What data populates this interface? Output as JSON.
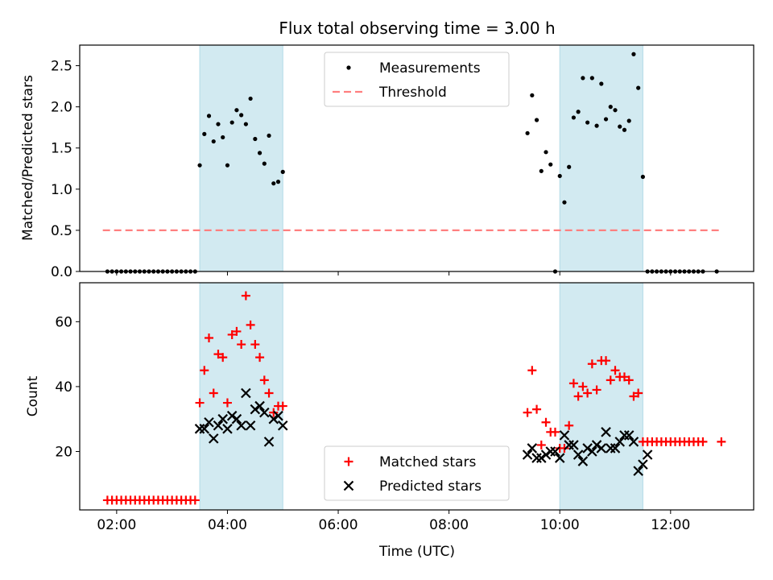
{
  "chart_data": {
    "type": "scatter",
    "title": "Flux total observing time = 3.00 h",
    "xlabel": "Time (UTC)",
    "x_unit": "hours UTC",
    "xlim": [
      "01:20",
      "13:30"
    ],
    "xticks": [
      "02:00",
      "04:00",
      "06:00",
      "08:00",
      "10:00",
      "12:00"
    ],
    "shaded_intervals": [
      [
        "03:30",
        "05:00"
      ],
      [
        "10:00",
        "11:30"
      ]
    ],
    "shade_color": "#add8e6",
    "panels": [
      {
        "name": "top",
        "ylabel": "Matched/Predicted stars",
        "ylim": [
          0,
          2.75
        ],
        "yticks": [
          "0.0",
          "0.5",
          "1.0",
          "1.5",
          "2.0",
          "2.5"
        ],
        "legend_position": "upper center",
        "series": [
          {
            "name": "Measurements",
            "marker": "dot",
            "color": "#000000",
            "points": [
              [
                "01:50",
                0
              ],
              [
                "01:55",
                0
              ],
              [
                "02:00",
                0
              ],
              [
                "02:05",
                0
              ],
              [
                "02:10",
                0
              ],
              [
                "02:15",
                0
              ],
              [
                "02:20",
                0
              ],
              [
                "02:25",
                0
              ],
              [
                "02:30",
                0
              ],
              [
                "02:35",
                0
              ],
              [
                "02:40",
                0
              ],
              [
                "02:45",
                0
              ],
              [
                "02:50",
                0
              ],
              [
                "02:55",
                0
              ],
              [
                "03:00",
                0
              ],
              [
                "03:05",
                0
              ],
              [
                "03:10",
                0
              ],
              [
                "03:15",
                0
              ],
              [
                "03:20",
                0
              ],
              [
                "03:25",
                0
              ],
              [
                "03:30",
                1.29
              ],
              [
                "03:35",
                1.67
              ],
              [
                "03:40",
                1.89
              ],
              [
                "03:45",
                1.58
              ],
              [
                "03:50",
                1.79
              ],
              [
                "03:55",
                1.63
              ],
              [
                "04:00",
                1.29
              ],
              [
                "04:05",
                1.81
              ],
              [
                "04:10",
                1.96
              ],
              [
                "04:15",
                1.9
              ],
              [
                "04:20",
                1.79
              ],
              [
                "04:25",
                2.1
              ],
              [
                "04:30",
                1.61
              ],
              [
                "04:35",
                1.44
              ],
              [
                "04:40",
                1.31
              ],
              [
                "04:45",
                1.65
              ],
              [
                "04:50",
                1.07
              ],
              [
                "04:55",
                1.09
              ],
              [
                "05:00",
                1.21
              ],
              [
                "09:25",
                1.68
              ],
              [
                "09:30",
                2.14
              ],
              [
                "09:35",
                1.84
              ],
              [
                "09:40",
                1.22
              ],
              [
                "09:45",
                1.45
              ],
              [
                "09:50",
                1.3
              ],
              [
                "09:55",
                0
              ],
              [
                "10:00",
                1.16
              ],
              [
                "10:05",
                0.84
              ],
              [
                "10:10",
                1.27
              ],
              [
                "10:15",
                1.87
              ],
              [
                "10:20",
                1.94
              ],
              [
                "10:25",
                2.35
              ],
              [
                "10:30",
                1.81
              ],
              [
                "10:35",
                2.35
              ],
              [
                "10:40",
                1.77
              ],
              [
                "10:45",
                2.28
              ],
              [
                "10:50",
                1.85
              ],
              [
                "10:55",
                2.0
              ],
              [
                "11:00",
                1.96
              ],
              [
                "11:05",
                1.76
              ],
              [
                "11:10",
                1.72
              ],
              [
                "11:15",
                1.83
              ],
              [
                "11:20",
                2.64
              ],
              [
                "11:25",
                2.23
              ],
              [
                "11:30",
                1.15
              ],
              [
                "11:35",
                0
              ],
              [
                "11:40",
                0
              ],
              [
                "11:45",
                0
              ],
              [
                "11:50",
                0
              ],
              [
                "11:55",
                0
              ],
              [
                "12:00",
                0
              ],
              [
                "12:05",
                0
              ],
              [
                "12:10",
                0
              ],
              [
                "12:15",
                0
              ],
              [
                "12:20",
                0
              ],
              [
                "12:25",
                0
              ],
              [
                "12:30",
                0
              ],
              [
                "12:35",
                0
              ],
              [
                "12:50",
                0
              ]
            ]
          },
          {
            "name": "Threshold",
            "marker": "dashed-line",
            "color": "#ff7f7f",
            "points": [
              [
                "01:45",
                0.5
              ],
              [
                "12:55",
                0.5
              ]
            ]
          }
        ]
      },
      {
        "name": "bottom",
        "ylabel": "Count",
        "ylim": [
          2,
          72
        ],
        "yticks": [
          "20",
          "40",
          "60"
        ],
        "legend_position": "lower center",
        "series": [
          {
            "name": "Matched stars",
            "marker": "plus",
            "color": "#ff0000",
            "points": [
              [
                "01:50",
                5
              ],
              [
                "01:55",
                5
              ],
              [
                "02:00",
                5
              ],
              [
                "02:05",
                5
              ],
              [
                "02:10",
                5
              ],
              [
                "02:15",
                5
              ],
              [
                "02:20",
                5
              ],
              [
                "02:25",
                5
              ],
              [
                "02:30",
                5
              ],
              [
                "02:35",
                5
              ],
              [
                "02:40",
                5
              ],
              [
                "02:45",
                5
              ],
              [
                "02:50",
                5
              ],
              [
                "02:55",
                5
              ],
              [
                "03:00",
                5
              ],
              [
                "03:05",
                5
              ],
              [
                "03:10",
                5
              ],
              [
                "03:15",
                5
              ],
              [
                "03:20",
                5
              ],
              [
                "03:25",
                5
              ],
              [
                "03:30",
                35
              ],
              [
                "03:35",
                45
              ],
              [
                "03:40",
                55
              ],
              [
                "03:45",
                38
              ],
              [
                "03:50",
                50
              ],
              [
                "03:55",
                49
              ],
              [
                "04:00",
                35
              ],
              [
                "04:05",
                56
              ],
              [
                "04:10",
                57
              ],
              [
                "04:15",
                53
              ],
              [
                "04:20",
                68
              ],
              [
                "04:25",
                59
              ],
              [
                "04:30",
                53
              ],
              [
                "04:35",
                49
              ],
              [
                "04:40",
                42
              ],
              [
                "04:45",
                38
              ],
              [
                "04:50",
                32
              ],
              [
                "04:55",
                34
              ],
              [
                "05:00",
                34
              ],
              [
                "09:25",
                32
              ],
              [
                "09:30",
                45
              ],
              [
                "09:35",
                33
              ],
              [
                "09:40",
                22
              ],
              [
                "09:45",
                29
              ],
              [
                "09:50",
                26
              ],
              [
                "09:55",
                26
              ],
              [
                "10:00",
                21
              ],
              [
                "10:05",
                21
              ],
              [
                "10:10",
                28
              ],
              [
                "10:15",
                41
              ],
              [
                "10:20",
                37
              ],
              [
                "10:25",
                40
              ],
              [
                "10:30",
                38
              ],
              [
                "10:35",
                47
              ],
              [
                "10:40",
                39
              ],
              [
                "10:45",
                48
              ],
              [
                "10:50",
                48
              ],
              [
                "10:55",
                42
              ],
              [
                "11:00",
                45
              ],
              [
                "11:05",
                43
              ],
              [
                "11:10",
                43
              ],
              [
                "11:15",
                42
              ],
              [
                "11:20",
                37
              ],
              [
                "11:25",
                38
              ],
              [
                "11:30",
                23
              ],
              [
                "11:35",
                23
              ],
              [
                "11:40",
                23
              ],
              [
                "11:45",
                23
              ],
              [
                "11:50",
                23
              ],
              [
                "11:55",
                23
              ],
              [
                "12:00",
                23
              ],
              [
                "12:05",
                23
              ],
              [
                "12:10",
                23
              ],
              [
                "12:15",
                23
              ],
              [
                "12:20",
                23
              ],
              [
                "12:25",
                23
              ],
              [
                "12:30",
                23
              ],
              [
                "12:35",
                23
              ],
              [
                "12:55",
                23
              ]
            ]
          },
          {
            "name": "Predicted stars",
            "marker": "x",
            "color": "#000000",
            "points": [
              [
                "03:30",
                27
              ],
              [
                "03:35",
                27
              ],
              [
                "03:40",
                29
              ],
              [
                "03:45",
                24
              ],
              [
                "03:50",
                28
              ],
              [
                "03:55",
                30
              ],
              [
                "04:00",
                27
              ],
              [
                "04:05",
                31
              ],
              [
                "04:10",
                30
              ],
              [
                "04:15",
                28
              ],
              [
                "04:20",
                38
              ],
              [
                "04:25",
                28
              ],
              [
                "04:30",
                33
              ],
              [
                "04:35",
                34
              ],
              [
                "04:40",
                32
              ],
              [
                "04:45",
                23
              ],
              [
                "04:50",
                30
              ],
              [
                "04:55",
                31
              ],
              [
                "05:00",
                28
              ],
              [
                "09:25",
                19
              ],
              [
                "09:30",
                21
              ],
              [
                "09:35",
                18
              ],
              [
                "09:40",
                18
              ],
              [
                "09:45",
                19
              ],
              [
                "09:50",
                20
              ],
              [
                "09:55",
                20
              ],
              [
                "10:00",
                18
              ],
              [
                "10:05",
                25
              ],
              [
                "10:10",
                22
              ],
              [
                "10:15",
                22
              ],
              [
                "10:20",
                19
              ],
              [
                "10:25",
                17
              ],
              [
                "10:30",
                21
              ],
              [
                "10:35",
                20
              ],
              [
                "10:40",
                22
              ],
              [
                "10:45",
                21
              ],
              [
                "10:50",
                26
              ],
              [
                "10:55",
                21
              ],
              [
                "11:00",
                21
              ],
              [
                "11:05",
                23
              ],
              [
                "11:10",
                25
              ],
              [
                "11:15",
                25
              ],
              [
                "11:20",
                23
              ],
              [
                "11:25",
                14
              ],
              [
                "11:30",
                16
              ],
              [
                "11:35",
                19
              ]
            ]
          }
        ]
      }
    ]
  }
}
